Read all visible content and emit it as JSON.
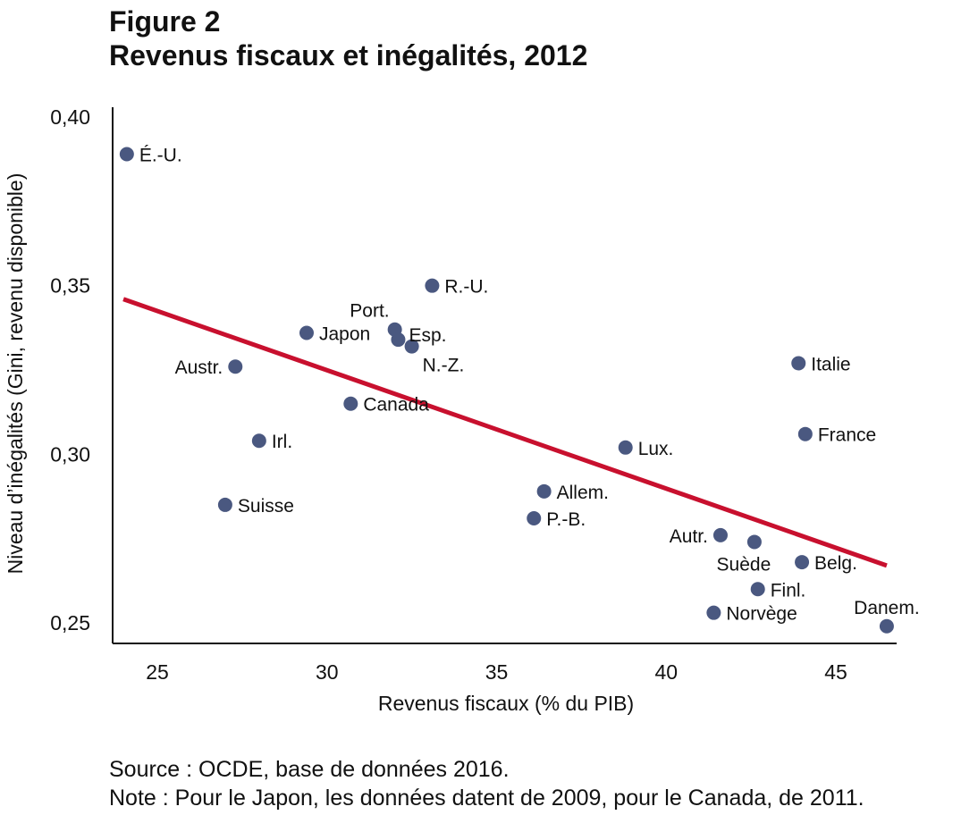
{
  "figure_label": "Figure 2",
  "title": "Revenus fiscaux et inégalités, 2012",
  "source": "Source : OCDE, base de données 2016.",
  "note": "Note : Pour le Japon, les données datent de 2009, pour le Canada, de 2011.",
  "colors": {
    "points": "#4a5880",
    "trend": "#c8102e",
    "axis": "#111111"
  },
  "chart_data": {
    "type": "scatter",
    "xlabel": "Revenus fiscaux (% du PIB)",
    "ylabel": "Niveau d’inégalités (Gini, revenu disponible)",
    "xlim": [
      23.6,
      47
    ],
    "ylim": [
      0.245,
      0.4
    ],
    "x_ticks": [
      25,
      30,
      35,
      40,
      45
    ],
    "x_tick_labels": [
      "25",
      "30",
      "35",
      "40",
      "45"
    ],
    "y_ticks": [
      0.25,
      0.3,
      0.35,
      0.4
    ],
    "y_tick_labels": [
      "0,25",
      "0,30",
      "0,35",
      "0,40"
    ],
    "grid": false,
    "points": [
      {
        "label": "É.-U.",
        "x": 24.1,
        "y": 0.389,
        "label_pos": "right"
      },
      {
        "label": "R.-U.",
        "x": 33.1,
        "y": 0.35,
        "label_pos": "right"
      },
      {
        "label": "Port.",
        "x": 32.0,
        "y": 0.337,
        "label_pos": "above-left"
      },
      {
        "label": "Esp.",
        "x": 32.1,
        "y": 0.334,
        "label_pos": "above-right"
      },
      {
        "label": "N.-Z.",
        "x": 32.5,
        "y": 0.332,
        "label_pos": "below-right"
      },
      {
        "label": "Japon",
        "x": 29.4,
        "y": 0.336,
        "label_pos": "right"
      },
      {
        "label": "Austr.",
        "x": 27.3,
        "y": 0.326,
        "label_pos": "left"
      },
      {
        "label": "Canada",
        "x": 30.7,
        "y": 0.315,
        "label_pos": "right"
      },
      {
        "label": "Irl.",
        "x": 28.0,
        "y": 0.304,
        "label_pos": "right"
      },
      {
        "label": "Suisse",
        "x": 27.0,
        "y": 0.285,
        "label_pos": "right"
      },
      {
        "label": "Lux.",
        "x": 38.8,
        "y": 0.302,
        "label_pos": "right"
      },
      {
        "label": "Allem.",
        "x": 36.4,
        "y": 0.289,
        "label_pos": "right"
      },
      {
        "label": "P.-B.",
        "x": 36.1,
        "y": 0.281,
        "label_pos": "right"
      },
      {
        "label": "Italie",
        "x": 43.9,
        "y": 0.327,
        "label_pos": "right"
      },
      {
        "label": "France",
        "x": 44.1,
        "y": 0.306,
        "label_pos": "right"
      },
      {
        "label": "Autr.",
        "x": 41.6,
        "y": 0.276,
        "label_pos": "left"
      },
      {
        "label": "Suède",
        "x": 42.6,
        "y": 0.274,
        "label_pos": "below"
      },
      {
        "label": "Belg.",
        "x": 44.0,
        "y": 0.268,
        "label_pos": "right"
      },
      {
        "label": "Finl.",
        "x": 42.7,
        "y": 0.26,
        "label_pos": "right"
      },
      {
        "label": "Norvège",
        "x": 41.4,
        "y": 0.253,
        "label_pos": "right"
      },
      {
        "label": "Danem.",
        "x": 46.5,
        "y": 0.249,
        "label_pos": "above"
      }
    ],
    "trendline": {
      "x": [
        24.0,
        46.5
      ],
      "y": [
        0.346,
        0.267
      ]
    }
  }
}
